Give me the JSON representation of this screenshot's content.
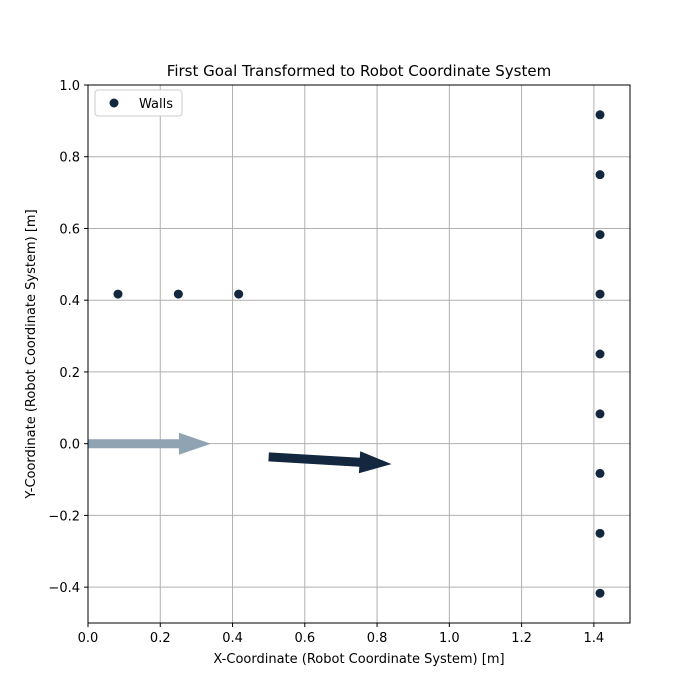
{
  "chart_data": {
    "type": "scatter",
    "title": "First Goal Transformed to Robot Coordinate System",
    "xlabel": "X-Coordinate (Robot Coordinate System) [m]",
    "ylabel": "Y-Coordinate (Robot Coordinate System) [m]",
    "xlim": [
      0,
      1.5
    ],
    "ylim": [
      -0.5,
      1.0
    ],
    "x_ticks": [
      0.0,
      0.2,
      0.4,
      0.6,
      0.8,
      1.0,
      1.2,
      1.4
    ],
    "x_tick_labels": [
      "0.0",
      "0.2",
      "0.4",
      "0.6",
      "0.8",
      "1.0",
      "1.2",
      "1.4"
    ],
    "y_ticks": [
      -0.4,
      -0.2,
      0.0,
      0.2,
      0.4,
      0.6,
      0.8,
      1.0
    ],
    "y_tick_labels": [
      "−0.4",
      "−0.2",
      "0.0",
      "0.2",
      "0.4",
      "0.6",
      "0.8",
      "1.0"
    ],
    "grid": true,
    "legend_position": "top-left",
    "series": [
      {
        "name": "Walls",
        "color": "#13283f",
        "points": [
          [
            0.083,
            0.417
          ],
          [
            0.25,
            0.417
          ],
          [
            0.417,
            0.417
          ],
          [
            1.417,
            0.917
          ],
          [
            1.417,
            0.75
          ],
          [
            1.417,
            0.583
          ],
          [
            1.417,
            0.417
          ],
          [
            1.417,
            0.25
          ],
          [
            1.417,
            0.083
          ],
          [
            1.417,
            -0.083
          ],
          [
            1.417,
            -0.25
          ],
          [
            1.417,
            -0.417
          ]
        ]
      }
    ],
    "arrows": [
      {
        "from": [
          0.0,
          0.0
        ],
        "to": [
          0.34,
          0.0
        ],
        "color": "#8fa3b3"
      },
      {
        "from": [
          0.5,
          -0.037
        ],
        "to": [
          0.84,
          -0.057
        ],
        "color": "#13283f"
      }
    ]
  }
}
